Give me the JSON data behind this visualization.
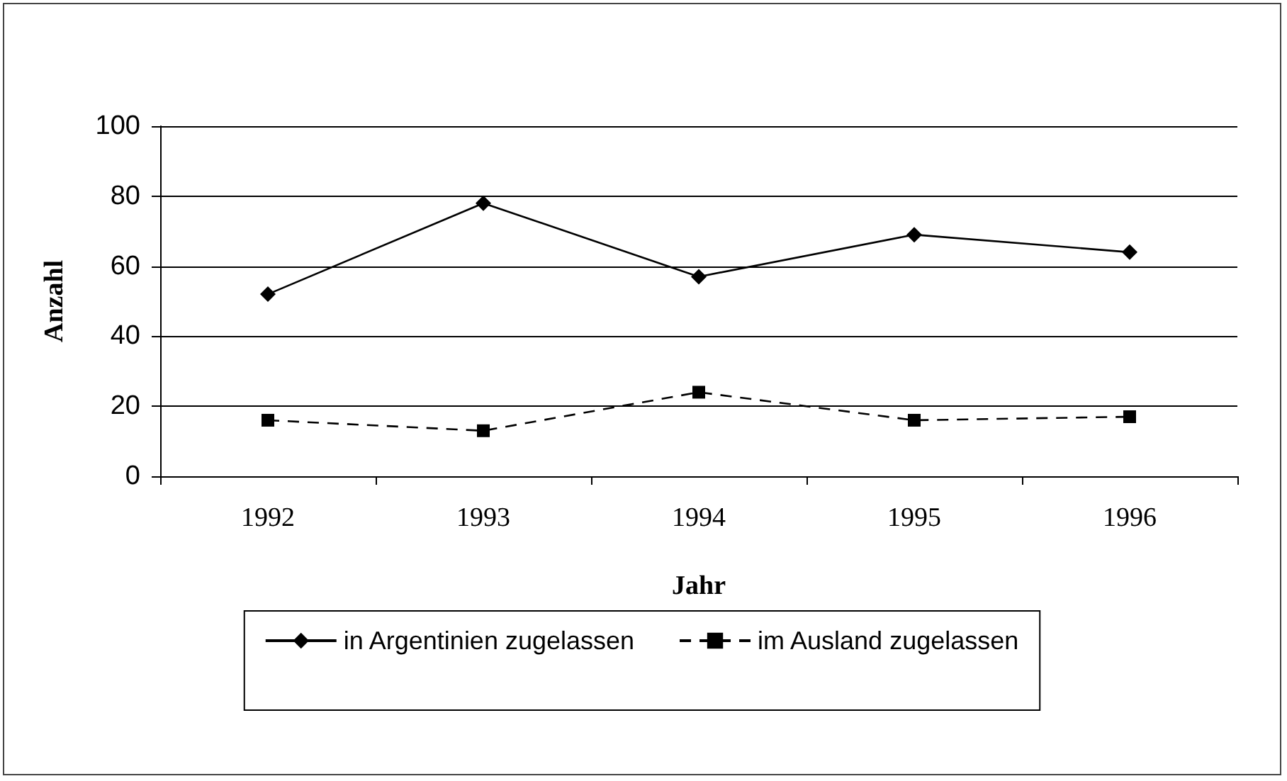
{
  "chart_data": {
    "type": "line",
    "xlabel": "Jahr",
    "ylabel": "Anzahl",
    "categories": [
      "1992",
      "1993",
      "1994",
      "1995",
      "1996"
    ],
    "series": [
      {
        "name": "in Argentinien zugelassen",
        "color": "#000000",
        "values": [
          52,
          78,
          57,
          69,
          64
        ],
        "marker": "diamond",
        "line_style": "solid"
      },
      {
        "name": "im Ausland zugelassen",
        "color": "#000000",
        "values": [
          16,
          13,
          24,
          16,
          17
        ],
        "marker": "square",
        "line_style": "dashed"
      }
    ],
    "ylim": [
      0,
      100
    ],
    "yticks": [
      0,
      20,
      40,
      60,
      80,
      100
    ],
    "grid": "y",
    "legend": "bottom"
  }
}
